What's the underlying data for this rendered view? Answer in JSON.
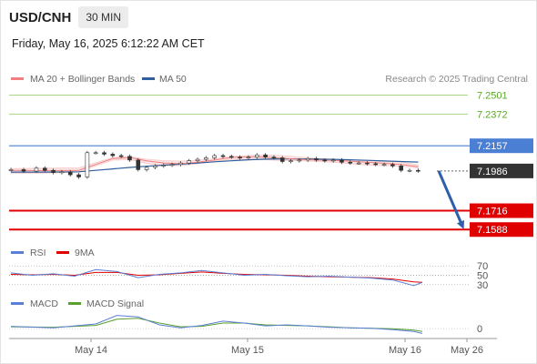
{
  "header": {
    "pair": "USD/CNH",
    "timeframe": "30 MIN"
  },
  "datetime": "Friday, May 16, 2025 6:12:22 AM CET",
  "credit": "Research © 2025 Trading Central",
  "colors": {
    "ma20": "#f08080",
    "ma50": "#2f5f9e",
    "green": "#6ab03a",
    "blue": "#4a7fd4",
    "red": "#e00000",
    "dark": "#333333",
    "rsi": "#5a7fd6",
    "ma9": "#e00000",
    "macd": "#5a7fd6",
    "signal": "#5aa02c",
    "band": "#fbe3e3"
  },
  "legend_main": {
    "ma20": "MA 20 + Bollinger Bands",
    "ma50": "MA 50"
  },
  "legend_rsi": {
    "rsi": "RSI",
    "ma9": "9MA"
  },
  "legend_macd": {
    "macd": "MACD",
    "signal": "MACD Signal"
  },
  "chart_data": {
    "type": "line",
    "title": "USD/CNH",
    "y_range": [
      7.154,
      7.256
    ],
    "x_ticks": [
      "May 14",
      "May 15",
      "May 16",
      "May 26"
    ],
    "levels": [
      {
        "value": 7.2501,
        "label": "7.2501",
        "style": "green-line"
      },
      {
        "value": 7.2372,
        "label": "7.2372",
        "style": "green-line"
      },
      {
        "value": 7.2157,
        "label": "7.2157",
        "style": "blue-badge"
      },
      {
        "value": 7.1986,
        "label": "7.1986",
        "style": "price-badge"
      },
      {
        "value": 7.1716,
        "label": "7.1716",
        "style": "red-badge"
      },
      {
        "value": 7.1588,
        "label": "7.1588",
        "style": "red-badge"
      }
    ],
    "series": [
      {
        "name": "Price",
        "x": [
          0,
          0.03,
          0.06,
          0.08,
          0.1,
          0.12,
          0.14,
          0.16,
          0.18,
          0.2,
          0.22,
          0.24,
          0.26,
          0.28,
          0.3,
          0.32,
          0.34,
          0.36,
          0.38,
          0.4,
          0.42,
          0.44,
          0.46,
          0.48,
          0.5,
          0.52,
          0.54,
          0.56,
          0.58,
          0.6,
          0.62,
          0.64,
          0.66,
          0.68,
          0.7,
          0.72,
          0.74,
          0.76,
          0.78,
          0.8,
          0.82,
          0.84,
          0.86,
          0.88,
          0.9,
          0.92,
          0.94,
          0.96
        ],
        "values": [
          7.1995,
          7.1985,
          7.2005,
          7.199,
          7.1975,
          7.198,
          7.196,
          7.1945,
          7.211,
          7.211,
          7.21,
          7.209,
          7.2085,
          7.206,
          7.1995,
          7.201,
          7.202,
          7.2025,
          7.203,
          7.204,
          7.2055,
          7.2065,
          7.2075,
          7.209,
          7.2085,
          7.208,
          7.2075,
          7.208,
          7.2095,
          7.208,
          7.2075,
          7.205,
          7.2055,
          7.206,
          7.207,
          7.206,
          7.2055,
          7.206,
          7.2045,
          7.204,
          7.204,
          7.2035,
          7.203,
          7.203,
          7.202,
          7.199,
          7.199,
          7.1986
        ]
      },
      {
        "name": "MA 20",
        "x": [
          0,
          0.08,
          0.16,
          0.2,
          0.24,
          0.28,
          0.32,
          0.36,
          0.4,
          0.44,
          0.48,
          0.52,
          0.56,
          0.6,
          0.64,
          0.68,
          0.72,
          0.76,
          0.8,
          0.84,
          0.88,
          0.92,
          0.96
        ],
        "values": [
          7.199,
          7.1988,
          7.199,
          7.203,
          7.207,
          7.2078,
          7.2055,
          7.204,
          7.2035,
          7.2045,
          7.206,
          7.2078,
          7.2082,
          7.208,
          7.2072,
          7.2065,
          7.206,
          7.2058,
          7.2052,
          7.2045,
          7.2038,
          7.203,
          7.2015
        ]
      },
      {
        "name": "MA 50",
        "x": [
          0,
          0.08,
          0.16,
          0.2,
          0.24,
          0.28,
          0.32,
          0.36,
          0.4,
          0.44,
          0.48,
          0.52,
          0.56,
          0.6,
          0.64,
          0.68,
          0.72,
          0.76,
          0.8,
          0.84,
          0.88,
          0.92,
          0.96
        ],
        "values": [
          7.1978,
          7.1978,
          7.198,
          7.199,
          7.2,
          7.201,
          7.2018,
          7.2025,
          7.2032,
          7.204,
          7.2048,
          7.2055,
          7.2062,
          7.2066,
          7.2068,
          7.2068,
          7.2067,
          7.2065,
          7.2062,
          7.2058,
          7.2054,
          7.205,
          7.2046
        ]
      }
    ],
    "projection": {
      "from": 7.1986,
      "to": 7.1588
    },
    "rsi": {
      "levels": [
        70,
        50,
        30
      ],
      "x": [
        0,
        0.05,
        0.1,
        0.15,
        0.2,
        0.25,
        0.3,
        0.35,
        0.4,
        0.45,
        0.5,
        0.55,
        0.6,
        0.65,
        0.7,
        0.75,
        0.8,
        0.85,
        0.9,
        0.95,
        0.97
      ],
      "values": [
        55,
        50,
        53,
        48,
        62,
        58,
        45,
        52,
        55,
        60,
        55,
        50,
        52,
        49,
        47,
        48,
        46,
        44,
        40,
        28,
        35
      ],
      "ma9": [
        52,
        51,
        52,
        50,
        56,
        56,
        50,
        51,
        54,
        57,
        54,
        52,
        51,
        50,
        48,
        47,
        46,
        45,
        42,
        36,
        35
      ]
    },
    "macd": {
      "zero_label": "0",
      "x": [
        0,
        0.1,
        0.2,
        0.25,
        0.3,
        0.35,
        0.4,
        0.45,
        0.5,
        0.55,
        0.6,
        0.65,
        0.7,
        0.75,
        0.8,
        0.85,
        0.9,
        0.95,
        0.97
      ],
      "macd": [
        0.5,
        0.2,
        1.0,
        2.8,
        2.5,
        0.8,
        0.2,
        0.7,
        1.6,
        1.2,
        0.6,
        0.8,
        0.6,
        0.3,
        0.2,
        0.1,
        -0.2,
        -0.6,
        -1.0
      ],
      "signal": [
        0.4,
        0.3,
        0.7,
        2.0,
        2.2,
        1.2,
        0.4,
        0.5,
        1.2,
        1.2,
        0.8,
        0.7,
        0.6,
        0.4,
        0.2,
        0.1,
        0.0,
        -0.3,
        -0.6
      ]
    }
  }
}
